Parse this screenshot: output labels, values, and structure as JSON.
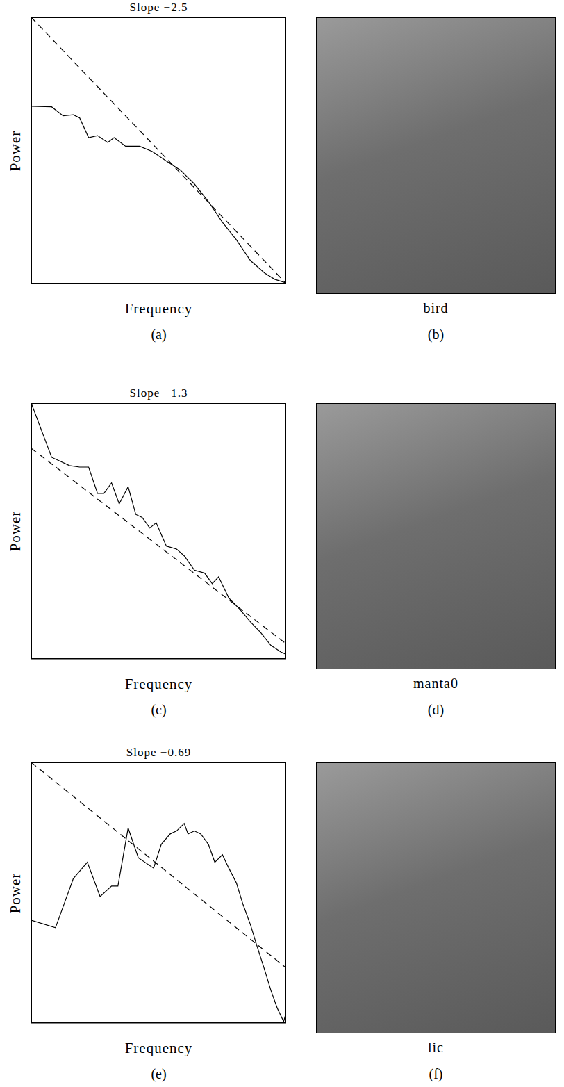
{
  "chart_data": [
    {
      "type": "line",
      "panel_label": "(a)",
      "title": "Slope −2.5",
      "x_label": "Frequency",
      "y_label": "Power",
      "xlim": [
        0,
        2
      ],
      "ylim": [
        0,
        5
      ],
      "tick_labels": false,
      "color": "#000000",
      "series": [
        {
          "line_style": "solid",
          "x": [
            0,
            0.16,
            0.25,
            0.33,
            0.38,
            0.45,
            0.52,
            0.6,
            0.65,
            0.74,
            0.85,
            0.95,
            1.06,
            1.17,
            1.28,
            1.39,
            1.5,
            1.61,
            1.72,
            1.83,
            1.91,
            2.0
          ],
          "values": [
            3.33,
            3.32,
            3.15,
            3.17,
            3.11,
            2.74,
            2.78,
            2.65,
            2.74,
            2.58,
            2.58,
            2.48,
            2.3,
            2.13,
            1.87,
            1.54,
            1.15,
            0.82,
            0.43,
            0.2,
            0.08,
            0.01
          ]
        },
        {
          "line_style": "dashed",
          "x": [
            0,
            2
          ],
          "values": [
            5,
            0
          ]
        }
      ]
    },
    {
      "type": "line",
      "panel_label": "(c)",
      "title": "Slope −1.3",
      "x_label": "Frequency",
      "y_label": "Power",
      "xlim": [
        0,
        2
      ],
      "ylim": [
        0,
        3.4
      ],
      "tick_labels": false,
      "color": "#000000",
      "series": [
        {
          "line_style": "solid",
          "x": [
            0,
            0.16,
            0.3,
            0.38,
            0.45,
            0.52,
            0.57,
            0.63,
            0.69,
            0.76,
            0.82,
            0.87,
            0.93,
            0.98,
            1.06,
            1.14,
            1.2,
            1.28,
            1.36,
            1.42,
            1.47,
            1.55,
            1.63,
            1.72,
            1.8,
            1.88,
            1.96,
            2.0
          ],
          "values": [
            3.4,
            2.68,
            2.57,
            2.55,
            2.55,
            2.2,
            2.2,
            2.34,
            2.06,
            2.29,
            1.92,
            1.88,
            1.74,
            1.81,
            1.5,
            1.46,
            1.37,
            1.18,
            1.14,
            1.0,
            1.09,
            0.81,
            0.67,
            0.49,
            0.35,
            0.18,
            0.09,
            0.06
          ]
        },
        {
          "line_style": "dashed",
          "x": [
            0,
            2
          ],
          "values": [
            2.8,
            0.2
          ]
        }
      ]
    },
    {
      "type": "line",
      "panel_label": "(e)",
      "title": "Slope −0.69",
      "x_label": "Frequency",
      "y_label": "Power",
      "xlim": [
        0,
        2
      ],
      "ylim": [
        0,
        1.75
      ],
      "tick_labels": false,
      "color": "#000000",
      "series": [
        {
          "line_style": "solid",
          "x": [
            0,
            0.19,
            0.33,
            0.44,
            0.54,
            0.63,
            0.68,
            0.76,
            0.84,
            0.96,
            1.02,
            1.09,
            1.14,
            1.2,
            1.23,
            1.28,
            1.33,
            1.39,
            1.44,
            1.5,
            1.55,
            1.61,
            1.66,
            1.72,
            1.77,
            1.83,
            1.88,
            1.93,
            1.98,
            2.0
          ],
          "values": [
            0.69,
            0.64,
            0.97,
            1.08,
            0.85,
            0.92,
            0.92,
            1.31,
            1.11,
            1.04,
            1.2,
            1.27,
            1.29,
            1.34,
            1.27,
            1.29,
            1.27,
            1.2,
            1.08,
            1.13,
            1.04,
            0.94,
            0.8,
            0.66,
            0.52,
            0.36,
            0.22,
            0.1,
            0.01,
            0.07
          ]
        },
        {
          "line_style": "dashed",
          "x": [
            0,
            2
          ],
          "values": [
            1.75,
            0.37
          ]
        }
      ]
    }
  ],
  "images": [
    {
      "caption": "bird",
      "panel_label": "(b)"
    },
    {
      "caption": "manta0",
      "panel_label": "(d)"
    },
    {
      "caption": "lic",
      "panel_label": "(f)"
    }
  ]
}
